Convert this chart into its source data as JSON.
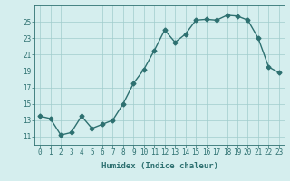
{
  "x": [
    0,
    1,
    2,
    3,
    4,
    5,
    6,
    7,
    8,
    9,
    10,
    11,
    12,
    13,
    14,
    15,
    16,
    17,
    18,
    19,
    20,
    21,
    22,
    23
  ],
  "y": [
    13.5,
    13.2,
    11.2,
    11.5,
    13.5,
    12.0,
    12.5,
    13.0,
    15.0,
    17.5,
    19.2,
    21.5,
    24.0,
    22.5,
    23.5,
    25.2,
    25.3,
    25.2,
    25.8,
    25.7,
    25.2,
    23.0,
    19.5,
    18.8
  ],
  "line_color": "#2d7070",
  "marker": "D",
  "markersize": 2.5,
  "linewidth": 1.0,
  "bg_color": "#d5eeee",
  "grid_color": "#a0cccc",
  "xlabel": "Humidex (Indice chaleur)",
  "ylim": [
    10,
    27
  ],
  "yticks": [
    11,
    13,
    15,
    17,
    19,
    21,
    23,
    25
  ],
  "xlim": [
    -0.5,
    23.5
  ],
  "xticks": [
    0,
    1,
    2,
    3,
    4,
    5,
    6,
    7,
    8,
    9,
    10,
    11,
    12,
    13,
    14,
    15,
    16,
    17,
    18,
    19,
    20,
    21,
    22,
    23
  ],
  "tick_fontsize": 5.5,
  "xlabel_fontsize": 6.5
}
